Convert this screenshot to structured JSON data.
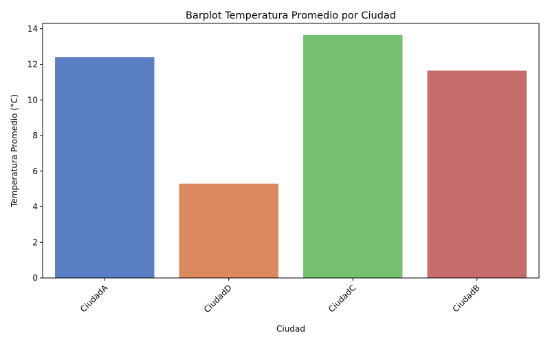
{
  "chart_data": {
    "type": "bar",
    "title": "Barplot Temperatura Promedio por Ciudad",
    "xlabel": "Ciudad",
    "ylabel": "Temperatura Promedio (°C)",
    "categories": [
      "CiudadA",
      "CiudadD",
      "CiudadC",
      "CiudadB"
    ],
    "values": [
      12.4,
      5.3,
      13.65,
      11.65
    ],
    "colors": [
      "#5a7ec4",
      "#db8a5e",
      "#75c170",
      "#c66d6c"
    ],
    "ylim": [
      0,
      14.3
    ],
    "yticks": [
      0,
      2,
      4,
      6,
      8,
      10,
      12,
      14
    ],
    "grid": false,
    "legend": "none"
  }
}
